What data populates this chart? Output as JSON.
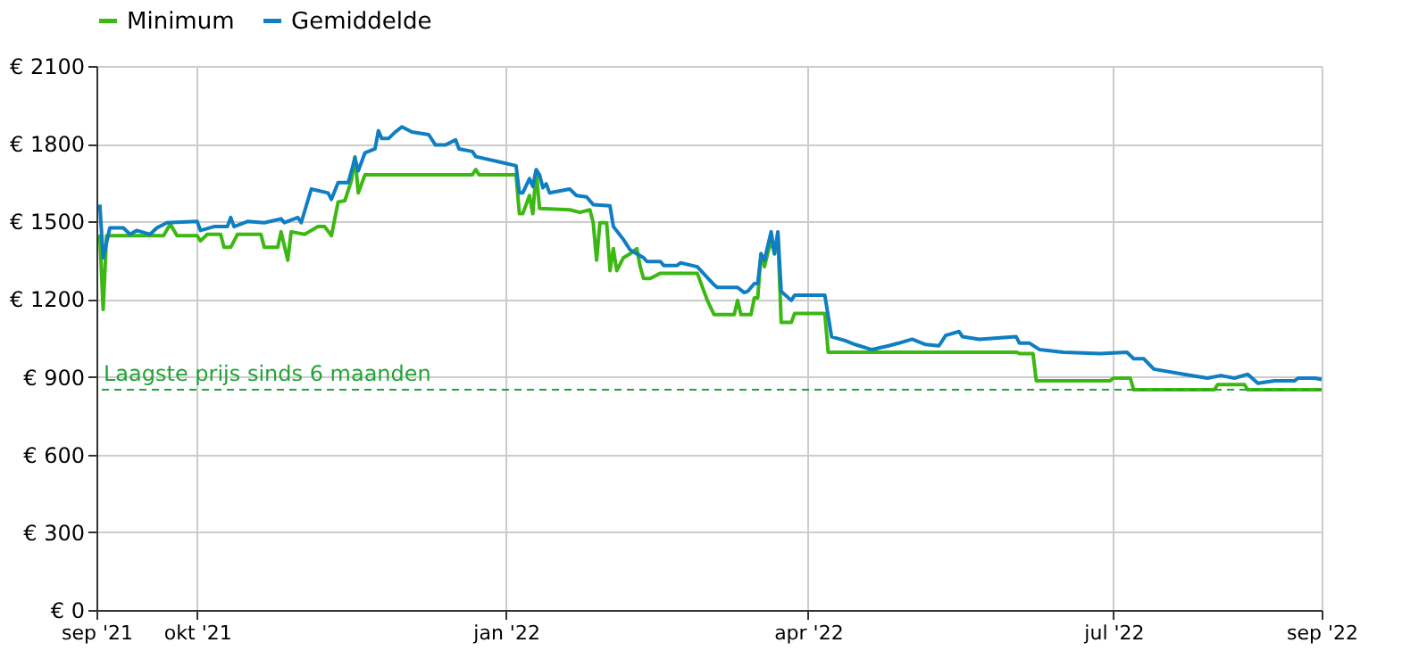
{
  "chart_data": {
    "type": "line",
    "xlim": [
      "2021-09-01",
      "2022-09-01"
    ],
    "xticks": [
      {
        "value": "2021-09-01",
        "label": "sep '21"
      },
      {
        "value": "2021-10-01",
        "label": "okt '21"
      },
      {
        "value": "2022-01-01",
        "label": "jan '22"
      },
      {
        "value": "2022-04-01",
        "label": "apr '22"
      },
      {
        "value": "2022-07-01",
        "label": "jul '22"
      },
      {
        "value": "2022-09-01",
        "label": "sep '22"
      }
    ],
    "ylim": [
      0,
      2100
    ],
    "yticks": [
      {
        "value": 0,
        "label": "€ 0"
      },
      {
        "value": 300,
        "label": "€ 300"
      },
      {
        "value": 600,
        "label": "€ 600"
      },
      {
        "value": 900,
        "label": "€ 900"
      },
      {
        "value": 1200,
        "label": "€ 1200"
      },
      {
        "value": 1500,
        "label": "€ 1500"
      },
      {
        "value": 1800,
        "label": "€ 1800"
      },
      {
        "value": 2100,
        "label": "€ 2100"
      }
    ],
    "grid": true,
    "legend": "top",
    "line_style": "solid",
    "ref_lines": [
      {
        "axis": "y",
        "value": 850,
        "label": "Laagste prijs sinds 6 maanden",
        "color": "#22a336",
        "line_style": "dashed"
      }
    ],
    "series": [
      {
        "name": "Minimum",
        "color": "#3cb814",
        "x": [
          "2021-09-02",
          "2021-09-03",
          "2021-09-04",
          "2021-09-21",
          "2021-09-23",
          "2021-09-25",
          "2021-10-01",
          "2021-10-02",
          "2021-10-04",
          "2021-10-08",
          "2021-10-09",
          "2021-10-11",
          "2021-10-13",
          "2021-10-20",
          "2021-10-21",
          "2021-10-25",
          "2021-10-26",
          "2021-10-28",
          "2021-10-29",
          "2021-11-02",
          "2021-11-06",
          "2021-11-08",
          "2021-11-10",
          "2021-11-12",
          "2021-11-14",
          "2021-11-16",
          "2021-11-17",
          "2021-11-18",
          "2021-11-20",
          "2021-12-22",
          "2021-12-23",
          "2021-12-24",
          "2022-01-04",
          "2022-01-05",
          "2022-01-06",
          "2022-01-08",
          "2022-01-09",
          "2022-01-10",
          "2022-01-11",
          "2022-01-20",
          "2022-01-23",
          "2022-01-26",
          "2022-01-27",
          "2022-01-28",
          "2022-01-29",
          "2022-01-31",
          "2022-02-01",
          "2022-02-02",
          "2022-02-03",
          "2022-02-05",
          "2022-02-07",
          "2022-02-09",
          "2022-02-10",
          "2022-02-11",
          "2022-02-13",
          "2022-02-16",
          "2022-02-27",
          "2022-03-02",
          "2022-03-04",
          "2022-03-10",
          "2022-03-11",
          "2022-03-12",
          "2022-03-15",
          "2022-03-16",
          "2022-03-17",
          "2022-03-18",
          "2022-03-19",
          "2022-03-21",
          "2022-03-22",
          "2022-03-23",
          "2022-03-24",
          "2022-03-27",
          "2022-03-28",
          "2022-04-06",
          "2022-04-07",
          "2022-06-02",
          "2022-06-03",
          "2022-06-07",
          "2022-06-08",
          "2022-06-30",
          "2022-07-01",
          "2022-07-06",
          "2022-07-07",
          "2022-07-31",
          "2022-08-01",
          "2022-08-09",
          "2022-08-10",
          "2022-09-01"
        ],
        "values": [
          1450,
          1160,
          1445,
          1445,
          1490,
          1445,
          1445,
          1425,
          1450,
          1450,
          1400,
          1400,
          1450,
          1450,
          1400,
          1400,
          1460,
          1350,
          1460,
          1450,
          1480,
          1480,
          1445,
          1575,
          1580,
          1660,
          1750,
          1610,
          1680,
          1680,
          1700,
          1680,
          1680,
          1530,
          1530,
          1600,
          1530,
          1695,
          1550,
          1545,
          1535,
          1545,
          1495,
          1350,
          1495,
          1495,
          1310,
          1395,
          1310,
          1360,
          1375,
          1395,
          1325,
          1280,
          1280,
          1300,
          1300,
          1195,
          1140,
          1140,
          1195,
          1140,
          1140,
          1205,
          1205,
          1375,
          1325,
          1430,
          1375,
          1445,
          1110,
          1110,
          1145,
          1145,
          995,
          995,
          990,
          990,
          885,
          885,
          895,
          895,
          850,
          850,
          870,
          870,
          850,
          850
        ]
      },
      {
        "name": "Gemiddelde",
        "color": "#0f7ec2",
        "x": [
          "2021-09-02",
          "2021-09-03",
          "2021-09-05",
          "2021-09-09",
          "2021-09-11",
          "2021-09-13",
          "2021-09-17",
          "2021-09-19",
          "2021-09-22",
          "2021-10-01",
          "2021-10-02",
          "2021-10-06",
          "2021-10-10",
          "2021-10-11",
          "2021-10-12",
          "2021-10-16",
          "2021-10-21",
          "2021-10-26",
          "2021-10-27",
          "2021-10-31",
          "2021-11-01",
          "2021-11-04",
          "2021-11-09",
          "2021-11-10",
          "2021-11-12",
          "2021-11-15",
          "2021-11-16",
          "2021-11-17",
          "2021-11-18",
          "2021-11-20",
          "2021-11-23",
          "2021-11-24",
          "2021-11-25",
          "2021-11-27",
          "2021-11-29",
          "2021-12-01",
          "2021-12-04",
          "2021-12-09",
          "2021-12-11",
          "2021-12-14",
          "2021-12-17",
          "2021-12-18",
          "2021-12-22",
          "2021-12-23",
          "2021-12-30",
          "2022-01-04",
          "2022-01-05",
          "2022-01-06",
          "2022-01-08",
          "2022-01-09",
          "2022-01-10",
          "2022-01-11",
          "2022-01-12",
          "2022-01-13",
          "2022-01-14",
          "2022-01-20",
          "2022-01-22",
          "2022-01-25",
          "2022-01-27",
          "2022-02-01",
          "2022-02-02",
          "2022-02-05",
          "2022-02-07",
          "2022-02-11",
          "2022-02-12",
          "2022-02-16",
          "2022-02-17",
          "2022-02-21",
          "2022-02-22",
          "2022-02-27",
          "2022-03-04",
          "2022-03-05",
          "2022-03-11",
          "2022-03-13",
          "2022-03-14",
          "2022-03-16",
          "2022-03-17",
          "2022-03-18",
          "2022-03-19",
          "2022-03-21",
          "2022-03-22",
          "2022-03-23",
          "2022-03-24",
          "2022-03-27",
          "2022-03-28",
          "2022-04-06",
          "2022-04-08",
          "2022-04-12",
          "2022-04-15",
          "2022-04-20",
          "2022-04-25",
          "2022-04-28",
          "2022-05-02",
          "2022-05-06",
          "2022-05-10",
          "2022-05-12",
          "2022-05-16",
          "2022-05-17",
          "2022-05-22",
          "2022-06-02",
          "2022-06-03",
          "2022-06-06",
          "2022-06-09",
          "2022-06-16",
          "2022-06-27",
          "2022-07-05",
          "2022-07-07",
          "2022-07-10",
          "2022-07-13",
          "2022-07-22",
          "2022-07-29",
          "2022-08-02",
          "2022-08-06",
          "2022-08-10",
          "2022-08-13",
          "2022-08-18",
          "2022-08-24",
          "2022-08-25",
          "2022-08-30",
          "2022-09-01"
        ],
        "values": [
          1565,
          1360,
          1475,
          1475,
          1450,
          1465,
          1450,
          1475,
          1495,
          1500,
          1465,
          1480,
          1480,
          1515,
          1480,
          1500,
          1495,
          1510,
          1495,
          1515,
          1495,
          1625,
          1610,
          1585,
          1650,
          1650,
          1695,
          1745,
          1695,
          1765,
          1780,
          1850,
          1820,
          1820,
          1845,
          1865,
          1845,
          1835,
          1795,
          1795,
          1815,
          1780,
          1770,
          1750,
          1730,
          1715,
          1610,
          1610,
          1665,
          1635,
          1700,
          1680,
          1630,
          1645,
          1610,
          1625,
          1600,
          1595,
          1565,
          1560,
          1480,
          1430,
          1390,
          1360,
          1345,
          1345,
          1330,
          1330,
          1340,
          1325,
          1255,
          1245,
          1245,
          1225,
          1230,
          1260,
          1260,
          1375,
          1350,
          1460,
          1375,
          1460,
          1230,
          1195,
          1215,
          1215,
          1055,
          1040,
          1025,
          1005,
          1020,
          1030,
          1045,
          1025,
          1020,
          1060,
          1075,
          1055,
          1045,
          1055,
          1030,
          1030,
          1005,
          995,
          990,
          995,
          970,
          970,
          930,
          910,
          895,
          905,
          895,
          910,
          875,
          885,
          885,
          895,
          895,
          890
        ]
      }
    ]
  }
}
